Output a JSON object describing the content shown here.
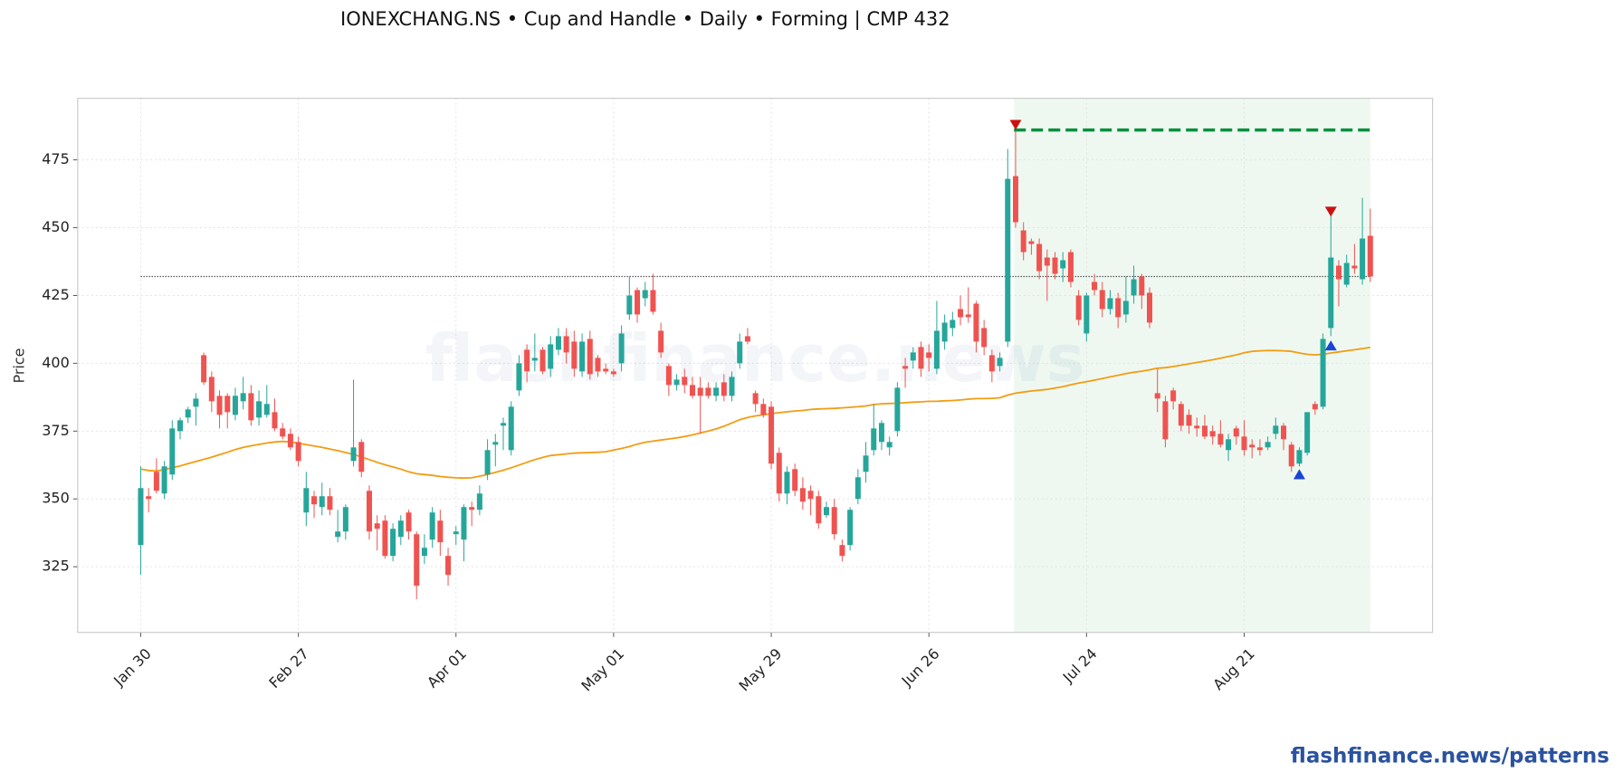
{
  "chart_data": {
    "type": "candlestick",
    "title": "IONEXCHANG.NS  •  Cup and Handle  •  Daily  •  Forming  |  CMP 432",
    "ylabel": "Price",
    "watermark": "flashfinance.news",
    "footer": "flashfinance.news/patterns",
    "up_color": "#26a69a",
    "down_color": "#ef5350",
    "grid": true,
    "xlim": [
      -8,
      163.9
    ],
    "ylim": [
      300.8,
      497.7
    ],
    "yticks": [
      325,
      350,
      375,
      400,
      425,
      450,
      475
    ],
    "categories": [
      "Jan 30",
      null,
      null,
      null,
      null,
      null,
      null,
      null,
      null,
      null,
      null,
      null,
      null,
      null,
      null,
      null,
      null,
      null,
      null,
      null,
      "Feb 27",
      null,
      null,
      null,
      null,
      null,
      null,
      null,
      null,
      null,
      null,
      null,
      null,
      null,
      null,
      null,
      null,
      null,
      null,
      null,
      "Apr 01",
      null,
      null,
      null,
      null,
      null,
      null,
      null,
      null,
      null,
      null,
      null,
      null,
      null,
      null,
      null,
      null,
      null,
      null,
      null,
      "May 01",
      null,
      null,
      null,
      null,
      null,
      null,
      null,
      null,
      null,
      null,
      null,
      null,
      null,
      null,
      null,
      null,
      null,
      null,
      null,
      "May 29",
      null,
      null,
      null,
      null,
      null,
      null,
      null,
      null,
      null,
      null,
      null,
      null,
      null,
      null,
      null,
      null,
      null,
      null,
      null,
      "Jun 26",
      null,
      null,
      null,
      null,
      null,
      null,
      null,
      null,
      null,
      null,
      null,
      null,
      null,
      null,
      null,
      null,
      null,
      null,
      null,
      "Jul 24",
      null,
      null,
      null,
      null,
      null,
      null,
      null,
      null,
      null,
      null,
      null,
      null,
      null,
      null,
      null,
      null,
      null,
      null,
      null,
      "Aug 21",
      null,
      null,
      null,
      null,
      null,
      null,
      null,
      null,
      null,
      null,
      null,
      null,
      null,
      null,
      null,
      null
    ],
    "open": [
      333,
      351,
      360,
      352,
      359,
      375,
      380,
      384,
      403,
      395,
      388,
      388,
      381,
      386,
      389,
      380,
      381,
      382,
      376,
      374,
      371,
      345,
      351,
      347,
      351,
      336,
      338,
      364,
      371,
      353,
      341,
      342,
      329,
      336,
      345,
      337,
      329,
      335,
      342,
      329,
      337,
      335,
      347,
      346,
      359,
      370,
      377,
      368,
      390,
      405,
      401,
      405,
      398,
      405,
      410,
      408,
      397,
      409,
      402,
      398,
      397,
      400,
      418,
      427,
      424,
      427,
      412,
      399,
      392,
      395,
      392,
      391,
      391,
      388,
      393,
      388,
      400,
      410,
      389,
      385,
      384,
      367,
      352,
      361,
      354,
      353,
      351,
      344,
      347,
      333,
      333,
      350,
      360,
      368,
      371,
      369,
      375,
      399,
      401,
      406,
      404,
      398,
      408,
      413,
      420,
      418,
      422,
      413,
      403,
      399,
      408,
      469,
      449,
      445,
      444,
      439,
      439,
      435,
      441,
      425,
      411,
      430,
      427,
      420,
      424,
      418,
      425,
      432,
      426,
      389,
      386,
      390,
      385,
      381,
      377,
      377,
      375,
      374,
      368,
      376,
      373,
      370,
      369,
      369,
      374,
      377,
      370,
      363,
      367,
      385,
      384,
      413,
      436,
      429,
      436,
      431,
      447
    ],
    "high": [
      362,
      354,
      365,
      364,
      379,
      380,
      384,
      389,
      404,
      397,
      390,
      389,
      391,
      395,
      392,
      390,
      392,
      387,
      378,
      376,
      373,
      360,
      353,
      356,
      354,
      346,
      348,
      394,
      372,
      355,
      344,
      344,
      341,
      344,
      346,
      338,
      337,
      347,
      346,
      332,
      340,
      348,
      349,
      355,
      372,
      374,
      380,
      386,
      403,
      407,
      411,
      406,
      410,
      413,
      413,
      412,
      411,
      412,
      403,
      400,
      398,
      414,
      432,
      428,
      430,
      433,
      415,
      400,
      396,
      398,
      395,
      395,
      393,
      393,
      396,
      397,
      411,
      413,
      390,
      387,
      386,
      369,
      362,
      363,
      358,
      355,
      353,
      349,
      350,
      335,
      347,
      361,
      371,
      385,
      379,
      373,
      393,
      402,
      406,
      408,
      407,
      423,
      418,
      419,
      425,
      428,
      423,
      416,
      405,
      404,
      479,
      486,
      452,
      446,
      446,
      442,
      441,
      441,
      442,
      427,
      426,
      433,
      430,
      427,
      426,
      432,
      436,
      433,
      428,
      398,
      388,
      391,
      386,
      383,
      380,
      381,
      377,
      379,
      374,
      377,
      379,
      372,
      372,
      373,
      380,
      378,
      371,
      369,
      382,
      386,
      411,
      455,
      438,
      440,
      444,
      461,
      457
    ],
    "low": [
      322,
      345,
      352,
      350,
      357,
      372,
      378,
      377,
      392,
      382,
      376,
      376,
      379,
      383,
      377,
      377,
      380,
      375,
      372,
      368,
      362,
      340,
      343,
      344,
      344,
      334,
      335,
      362,
      358,
      335,
      331,
      328,
      327,
      333,
      335,
      313,
      326,
      332,
      329,
      318,
      333,
      327,
      340,
      344,
      357,
      362,
      368,
      366,
      388,
      393,
      397,
      396,
      395,
      403,
      400,
      395,
      395,
      394,
      395,
      396,
      395,
      397,
      416,
      415,
      421,
      418,
      402,
      388,
      390,
      389,
      387,
      374,
      387,
      386,
      386,
      386,
      398,
      407,
      382,
      380,
      361,
      349,
      348,
      351,
      346,
      344,
      339,
      343,
      335,
      327,
      331,
      348,
      356,
      366,
      368,
      366,
      373,
      391,
      398,
      395,
      397,
      396,
      405,
      410,
      414,
      415,
      404,
      403,
      393,
      397,
      406,
      450,
      438,
      440,
      431,
      423,
      431,
      430,
      428,
      414,
      408,
      425,
      417,
      418,
      413,
      415,
      422,
      420,
      413,
      382,
      369,
      383,
      375,
      374,
      373,
      372,
      370,
      369,
      364,
      370,
      366,
      365,
      366,
      368,
      372,
      368,
      360,
      362,
      366,
      381,
      383,
      410,
      421,
      428,
      433,
      429,
      430
    ],
    "close": [
      354,
      350,
      353,
      362,
      376,
      379,
      383,
      387,
      393,
      386,
      381,
      382,
      388,
      389,
      379,
      386,
      385,
      376,
      373,
      369,
      364,
      354,
      348,
      351,
      346,
      338,
      347,
      369,
      360,
      338,
      339,
      329,
      339,
      342,
      338,
      318,
      332,
      345,
      334,
      322,
      338,
      347,
      346,
      352,
      368,
      371,
      378,
      384,
      400,
      397,
      402,
      397,
      407,
      410,
      404,
      398,
      408,
      396,
      397,
      397,
      396,
      411,
      425,
      418,
      427,
      419,
      404,
      392,
      394,
      392,
      388,
      388,
      388,
      391,
      388,
      395,
      408,
      408,
      385,
      381,
      363,
      352,
      360,
      353,
      349,
      350,
      341,
      347,
      337,
      329,
      346,
      358,
      366,
      376,
      378,
      371,
      391,
      398,
      404,
      398,
      402,
      412,
      415,
      416,
      417,
      417,
      408,
      406,
      397,
      402,
      468,
      452,
      441,
      444,
      434,
      436,
      433,
      438,
      430,
      416,
      425,
      427,
      420,
      424,
      417,
      423,
      431,
      425,
      415,
      387,
      372,
      386,
      377,
      377,
      376,
      373,
      373,
      370,
      372,
      373,
      368,
      369,
      368,
      371,
      377,
      372,
      362,
      368,
      382,
      383,
      409,
      439,
      431,
      437,
      435,
      446,
      432
    ],
    "moving_average": {
      "color": "#f39c12",
      "values": [
        361,
        360.5,
        360.3,
        360.8,
        361.5,
        362.2,
        363,
        363.8,
        364.6,
        365.4,
        366.3,
        367.2,
        368.2,
        369,
        369.6,
        370.1,
        370.6,
        371,
        371.2,
        371,
        370.5,
        370,
        369.5,
        369,
        368.4,
        367.8,
        367.1,
        366.4,
        365.5,
        364.5,
        363.5,
        362.6,
        361.8,
        361,
        360,
        359.3,
        359,
        358.7,
        358.3,
        358,
        357.8,
        357.7,
        357.8,
        358.4,
        359,
        359.8,
        360.6,
        361.5,
        362.5,
        363.5,
        364.5,
        365.3,
        366,
        366.3,
        366.6,
        366.9,
        367,
        367.1,
        367.2,
        367.4,
        368,
        368.6,
        369.3,
        370.2,
        370.9,
        371.3,
        371.7,
        372.1,
        372.5,
        373,
        373.6,
        374.3,
        375,
        375.8,
        376.8,
        378,
        379.2,
        380,
        380.6,
        381,
        381.4,
        381.8,
        382.1,
        382.4,
        382.6,
        383,
        383.2,
        383.3,
        383.4,
        383.6,
        383.8,
        384,
        384.3,
        384.8,
        385.1,
        385.2,
        385.3,
        385.5,
        385.7,
        385.8,
        386,
        386,
        386.2,
        386.3,
        386.5,
        386.8,
        387,
        387,
        387.1,
        387.3,
        388.3,
        389,
        389.4,
        389.8,
        390.1,
        390.4,
        390.9,
        391.4,
        392.1,
        392.7,
        393.2,
        393.8,
        394.4,
        395,
        395.6,
        396.2,
        396.7,
        397.1,
        397.6,
        398.2,
        398.4,
        398.8,
        399.3,
        399.8,
        400.3,
        400.8,
        401.3,
        401.9,
        402.5,
        403.1,
        403.9,
        404.4,
        404.6,
        404.7,
        404.7,
        404.6,
        404.4,
        403.8,
        403.3,
        403.1,
        403.3,
        403.8,
        404.2,
        404.6,
        405,
        405.4,
        405.9
      ]
    },
    "highlight": {
      "x": [
        110.8,
        156
      ],
      "color": "#e3f4e8"
    },
    "resistance": {
      "value": 486,
      "x": [
        110.8,
        156
      ],
      "color": "#0a8f3c"
    },
    "cmp_line": {
      "value": 432,
      "x": [
        0,
        156
      ],
      "color": "#555555"
    },
    "markers": [
      {
        "x": 111,
        "y": 488,
        "shape": "down",
        "color": "#cc1111"
      },
      {
        "x": 151,
        "y": 456,
        "shape": "down",
        "color": "#cc1111"
      },
      {
        "x": 147,
        "y": 359,
        "shape": "up",
        "color": "#1a44d6"
      },
      {
        "x": 151,
        "y": 406.5,
        "shape": "up",
        "color": "#1a44d6"
      }
    ]
  }
}
